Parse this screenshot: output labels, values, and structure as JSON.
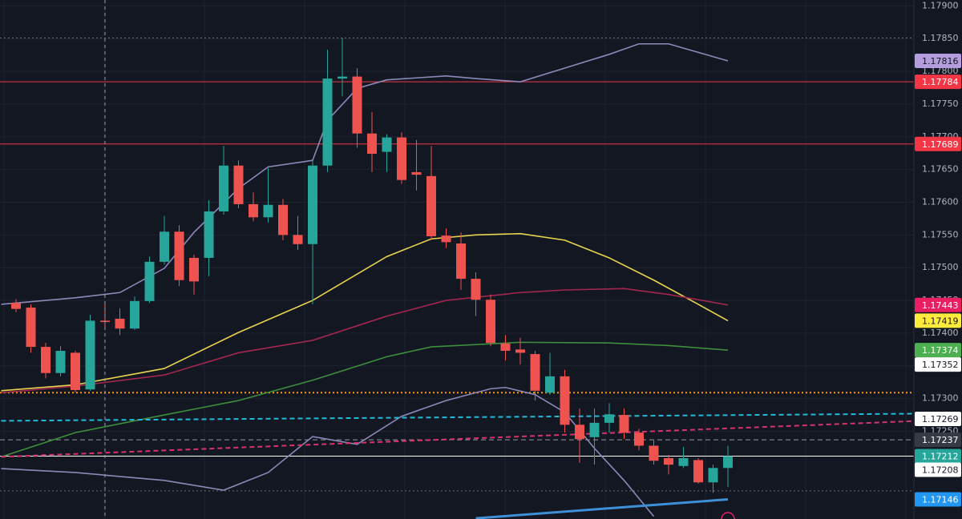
{
  "chart_data": {
    "type": "candlestick",
    "up_color": "#26a69a",
    "down_color": "#ef5350",
    "categories": [
      null,
      null,
      null,
      null,
      null,
      null,
      null,
      null,
      null,
      null,
      null,
      null,
      null,
      null,
      null,
      null,
      null,
      null,
      null,
      null,
      null,
      null,
      null,
      null,
      null,
      null,
      null,
      null,
      null,
      null,
      null,
      null,
      null,
      null,
      null,
      null,
      null,
      null,
      null,
      null,
      null,
      null,
      null,
      null,
      null,
      null,
      null,
      null,
      null
    ],
    "open": [
      1.17446,
      1.17439,
      1.17379,
      1.17339,
      1.1737,
      1.17314,
      1.17419,
      1.17422,
      1.17407,
      1.17449,
      1.17509,
      1.17555,
      1.17515,
      1.17515,
      1.17586,
      1.17656,
      1.17597,
      1.17577,
      1.17596,
      1.1755,
      1.17536,
      1.17656,
      1.17789,
      1.17792,
      1.17705,
      1.17677,
      1.17699,
      1.17646,
      1.1764,
      1.17549,
      1.17537,
      1.17483,
      1.17451,
      1.17384,
      1.17375,
      1.17368,
      1.17309,
      1.17334,
      1.1726,
      1.17241,
      1.17263,
      1.17275,
      1.17248,
      1.17228,
      1.17209,
      1.17197,
      1.17206,
      1.17172,
      1.17194
    ],
    "high": [
      1.17452,
      1.17444,
      1.17385,
      1.1738,
      1.17373,
      1.17428,
      1.17444,
      1.17438,
      1.17456,
      1.17517,
      1.17579,
      1.17565,
      1.1752,
      1.17603,
      1.17686,
      1.17664,
      1.17615,
      1.17652,
      1.17605,
      1.17579,
      1.17664,
      1.17833,
      1.17851,
      1.17805,
      1.17738,
      1.17704,
      1.17707,
      1.17695,
      1.17686,
      1.1756,
      1.17554,
      1.17493,
      1.17459,
      1.17397,
      1.17393,
      1.17373,
      1.1737,
      1.17344,
      1.17285,
      1.17285,
      1.17293,
      1.17285,
      1.17254,
      1.17236,
      1.17214,
      1.17226,
      1.17209,
      1.17199,
      1.17228
    ],
    "low": [
      1.17432,
      1.1737,
      1.17331,
      1.17334,
      1.17309,
      1.17312,
      1.17407,
      1.17397,
      1.17405,
      1.17446,
      1.17505,
      1.17472,
      1.17459,
      1.17487,
      1.17581,
      1.17591,
      1.17571,
      1.17569,
      1.17542,
      1.17527,
      1.17444,
      1.17646,
      1.17762,
      1.17683,
      1.17646,
      1.17646,
      1.17628,
      1.17618,
      1.17542,
      1.1753,
      1.17466,
      1.17426,
      1.1738,
      1.17358,
      1.17352,
      1.17297,
      1.17306,
      1.17248,
      1.17202,
      1.17199,
      1.17248,
      1.17238,
      1.17221,
      1.17199,
      1.17184,
      1.17194,
      1.1717,
      1.17156,
      1.17165
    ],
    "close": [
      1.17437,
      1.17379,
      1.17339,
      1.17373,
      1.17313,
      1.17419,
      1.17417,
      1.17407,
      1.17449,
      1.17509,
      1.17555,
      1.17481,
      1.17479,
      1.17586,
      1.17656,
      1.17597,
      1.17577,
      1.17596,
      1.1755,
      1.17536,
      1.17656,
      1.17789,
      1.17792,
      1.17705,
      1.17674,
      1.17699,
      1.17634,
      1.17642,
      1.17548,
      1.17539,
      1.17483,
      1.17451,
      1.17385,
      1.17373,
      1.1737,
      1.17312,
      1.17334,
      1.1726,
      1.17238,
      1.17263,
      1.17276,
      1.17248,
      1.17228,
      1.17205,
      1.17199,
      1.17209,
      1.17172,
      1.17194,
      1.17212
    ],
    "ylim": [
      1.17116,
      1.17909
    ],
    "yticks": [
      {
        "value": 1.179,
        "label": "1.17900"
      },
      {
        "value": 1.1785,
        "label": "1.17850"
      },
      {
        "value": 1.178,
        "label": "1.17800"
      },
      {
        "value": 1.1775,
        "label": "1.17750"
      },
      {
        "value": 1.177,
        "label": "1.17700"
      },
      {
        "value": 1.1765,
        "label": "1.17650"
      },
      {
        "value": 1.176,
        "label": "1.17600"
      },
      {
        "value": 1.1755,
        "label": "1.17550"
      },
      {
        "value": 1.175,
        "label": "1.17500"
      },
      {
        "value": 1.1745,
        "label": "1.17450"
      },
      {
        "value": 1.174,
        "label": "1.17400"
      },
      {
        "value": 1.1735,
        "label": "1.17350"
      },
      {
        "value": 1.173,
        "label": "1.17300"
      },
      {
        "value": 1.1725,
        "label": "1.17250"
      }
    ],
    "grid": true,
    "lines": [
      {
        "color": "#e8d44d",
        "style": "solid",
        "x": [
          -1,
          4,
          10,
          15,
          20,
          25,
          28,
          31,
          34,
          37,
          40,
          43,
          46,
          48
        ],
        "values": [
          1.17312,
          1.17321,
          1.17346,
          1.17401,
          1.1745,
          1.17517,
          1.17544,
          1.1755,
          1.17552,
          1.17542,
          1.17515,
          1.17481,
          1.17444,
          1.17419
        ]
      },
      {
        "color": "#a3264f",
        "style": "solid",
        "x": [
          -1,
          4,
          10,
          15,
          20,
          25,
          29,
          34,
          37,
          41,
          44,
          48
        ],
        "values": [
          1.17309,
          1.17319,
          1.17336,
          1.1737,
          1.17389,
          1.17426,
          1.1745,
          1.17462,
          1.17466,
          1.17468,
          1.17459,
          1.17443
        ]
      },
      {
        "color": "#3e8e3e",
        "style": "solid",
        "x": [
          -1,
          4,
          10,
          15,
          20,
          25,
          28,
          34,
          40,
          44,
          48
        ],
        "values": [
          1.17211,
          1.17248,
          1.17275,
          1.17297,
          1.17328,
          1.17364,
          1.17379,
          1.17386,
          1.17385,
          1.17381,
          1.17374
        ]
      },
      {
        "color": "#8e88b8",
        "style": "solid",
        "x": [
          -1,
          4,
          7,
          10,
          12,
          15,
          17,
          20,
          21,
          23,
          25,
          29,
          31,
          34,
          37,
          40,
          42,
          44,
          46,
          48
        ],
        "values": [
          1.17444,
          1.17454,
          1.17462,
          1.17499,
          1.17554,
          1.17621,
          1.17654,
          1.17664,
          1.17725,
          1.17774,
          1.17787,
          1.17793,
          1.17789,
          1.17784,
          1.17805,
          1.17826,
          1.17842,
          1.17842,
          1.17829,
          1.17816
        ]
      },
      {
        "color": "#8e88b8",
        "style": "solid",
        "x": [
          -1,
          4,
          10,
          14,
          17,
          20,
          23,
          26,
          29,
          32,
          33,
          35,
          37,
          39,
          41,
          43
        ],
        "values": [
          1.17193,
          1.17187,
          1.17175,
          1.1716,
          1.17187,
          1.17242,
          1.1723,
          1.17273,
          1.17297,
          1.17315,
          1.17317,
          1.17306,
          1.17279,
          1.17224,
          1.17175,
          1.1712
        ]
      },
      {
        "color": "#3d8fd6",
        "style": "thick",
        "x": [
          31,
          48
        ],
        "values": [
          1.17117,
          1.17146
        ]
      },
      {
        "color": "#26b8d6",
        "style": "dashed",
        "x": [
          -1,
          61
        ],
        "values": [
          1.17266,
          1.17277
        ]
      },
      {
        "color": "#d6336c",
        "style": "dashed",
        "x": [
          -1,
          61
        ],
        "values": [
          1.17211,
          1.17266
        ]
      }
    ],
    "levels": [
      {
        "value": 1.17784,
        "color": "#f23645",
        "style": "solid"
      },
      {
        "value": 1.17689,
        "color": "#f23645",
        "style": "solid"
      },
      {
        "value": 1.17212,
        "color": "#ffffff",
        "style": "solid"
      },
      {
        "value": 1.17309,
        "color": "#ff9800",
        "style": "dotted"
      },
      {
        "value": 1.17237,
        "color": "#9598a1",
        "style": "dashed"
      },
      {
        "value": 1.17851,
        "color": "#6a6d78",
        "style": "dotted"
      },
      {
        "value": 1.17159,
        "color": "#6a6d78",
        "style": "dotted"
      }
    ],
    "price_labels": [
      {
        "value": 1.17816,
        "color": "#b39ddb",
        "text_color": "#131722"
      },
      {
        "value": 1.17784,
        "color": "#f23645",
        "text_color": "#ffffff"
      },
      {
        "value": 1.17689,
        "color": "#f23645",
        "text_color": "#ffffff"
      },
      {
        "value": 1.17443,
        "color": "#e91e63",
        "text_color": "#ffffff"
      },
      {
        "value": 1.17419,
        "color": "#ffeb3b",
        "text_color": "#131722"
      },
      {
        "value": 1.17374,
        "color": "#4caf50",
        "text_color": "#ffffff"
      },
      {
        "value": 1.17352,
        "color": "#ffffff",
        "text_color": "#131722"
      },
      {
        "value": 1.17269,
        "color": "#ffffff",
        "text_color": "#131722"
      },
      {
        "value": 1.17237,
        "color": "#363a45",
        "text_color": "#ffffff"
      },
      {
        "value": 1.17212,
        "color": "#26a69a",
        "text_color": "#ffffff"
      },
      {
        "value": 1.17208,
        "color": "#ffffff",
        "text_color": "#131722"
      },
      {
        "value": 1.17146,
        "color": "#2196f3",
        "text_color": "#ffffff"
      }
    ]
  }
}
